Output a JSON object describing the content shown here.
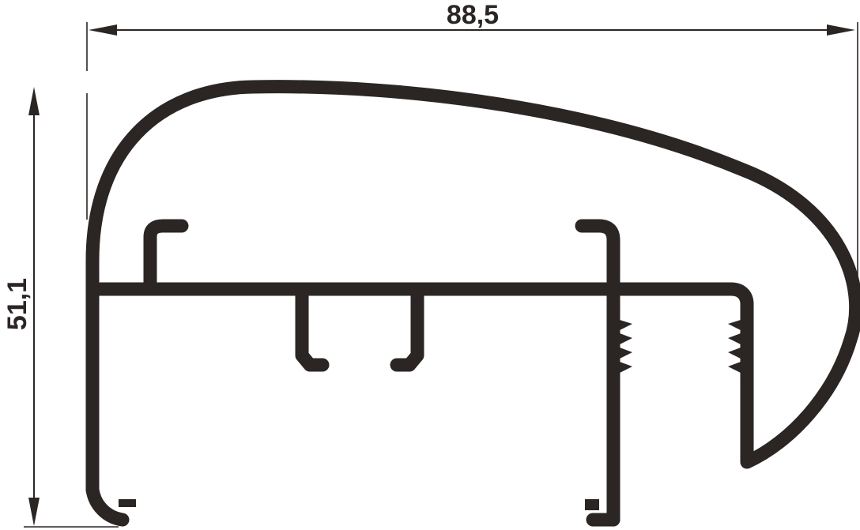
{
  "dimensions": {
    "width_label": "88,5",
    "height_label": "51,1"
  },
  "colors": {
    "stroke": "#2b2624",
    "background": "#ffffff"
  }
}
